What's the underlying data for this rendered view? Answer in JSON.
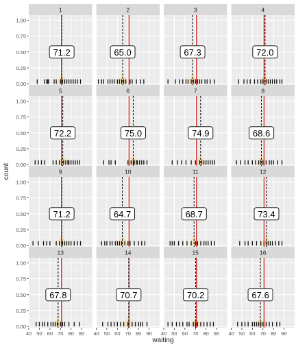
{
  "chart_data": {
    "type": "faceted-histogram",
    "xlabel": "waiting",
    "ylabel": "count",
    "xlim": [
      40,
      100
    ],
    "ylim": [
      -0.02,
      1.08
    ],
    "x_ticks": [
      40,
      50,
      60,
      70,
      80,
      90
    ],
    "y_ticks": [
      0.0,
      0.25,
      0.5,
      0.75,
      1.0
    ],
    "y_tick_labels": [
      "0.00",
      "0.25",
      "0.50",
      "0.75",
      "1.00"
    ],
    "reference_line": {
      "x": 71,
      "color": "#cc0000"
    },
    "density_color": "#f5deb3",
    "grid": true,
    "panels": [
      {
        "label": "1",
        "mean": 71.2,
        "mean_label": "71.2",
        "samples": [
          48,
          55,
          57,
          58,
          59,
          64,
          66,
          70,
          72,
          74,
          76,
          78,
          80,
          82,
          84,
          86,
          89
        ]
      },
      {
        "label": "2",
        "mean": 65.0,
        "mean_label": "65.0",
        "samples": [
          42,
          45,
          47,
          51,
          53,
          55,
          57,
          60,
          62,
          64,
          66,
          68,
          72,
          74,
          78,
          82,
          85
        ]
      },
      {
        "label": "3",
        "mean": 67.3,
        "mean_label": "67.3",
        "samples": [
          44,
          51,
          55,
          58,
          61,
          63,
          66,
          68,
          70,
          72,
          74,
          76,
          79,
          81,
          84,
          88
        ]
      },
      {
        "label": "4",
        "mean": 72.0,
        "mean_label": "72.0",
        "samples": [
          47,
          52,
          55,
          58,
          62,
          65,
          68,
          70,
          73,
          75,
          77,
          79,
          81,
          83,
          86,
          88
        ]
      },
      {
        "label": "5",
        "mean": 72.2,
        "mean_label": "72.2",
        "samples": [
          46,
          49,
          52,
          55,
          63,
          66,
          69,
          71,
          73,
          75,
          77,
          78,
          80,
          82,
          84,
          86,
          88
        ]
      },
      {
        "label": "6",
        "mean": 75.0,
        "mean_label": "75.0",
        "samples": [
          47,
          52,
          54,
          58,
          70,
          73,
          75,
          76,
          78,
          79,
          81,
          83,
          85,
          88
        ]
      },
      {
        "label": "7",
        "mean": 74.9,
        "mean_label": "74.9",
        "samples": [
          48,
          53,
          57,
          61,
          66,
          70,
          74,
          76,
          78,
          80,
          82,
          84,
          86,
          88
        ]
      },
      {
        "label": "8",
        "mean": 68.6,
        "mean_label": "68.6",
        "samples": [
          45,
          49,
          53,
          56,
          60,
          63,
          66,
          68,
          70,
          73,
          76,
          78,
          80,
          84,
          88
        ]
      },
      {
        "label": "9",
        "mean": 71.2,
        "mean_label": "71.2",
        "samples": [
          44,
          49,
          54,
          57,
          60,
          66,
          69,
          72,
          74,
          76,
          78,
          80,
          83,
          86,
          89
        ]
      },
      {
        "label": "10",
        "mean": 64.7,
        "mean_label": "64.7",
        "samples": [
          45,
          48,
          50,
          53,
          55,
          58,
          60,
          62,
          64,
          67,
          70,
          72,
          76,
          80,
          83,
          86
        ]
      },
      {
        "label": "11",
        "mean": 68.7,
        "mean_label": "68.7",
        "samples": [
          46,
          48,
          50,
          54,
          58,
          62,
          66,
          70,
          72,
          75,
          78,
          80,
          82,
          85,
          88
        ]
      },
      {
        "label": "12",
        "mean": 73.4,
        "mean_label": "73.4",
        "samples": [
          48,
          53,
          56,
          60,
          64,
          68,
          71,
          73,
          75,
          77,
          79,
          82,
          85,
          88
        ]
      },
      {
        "label": "13",
        "mean": 67.8,
        "mean_label": "67.8",
        "samples": [
          47,
          50,
          53,
          55,
          58,
          61,
          63,
          65,
          67,
          70,
          72,
          74,
          78,
          83,
          88
        ]
      },
      {
        "label": "14",
        "mean": 70.7,
        "mean_label": "70.7",
        "samples": [
          46,
          51,
          54,
          57,
          60,
          63,
          66,
          70,
          74,
          77,
          80,
          82,
          84,
          88
        ]
      },
      {
        "label": "15",
        "mean": 70.2,
        "mean_label": "70.2",
        "samples": [
          44,
          48,
          52,
          55,
          58,
          62,
          64,
          68,
          70,
          72,
          75,
          78,
          81,
          84,
          87
        ]
      },
      {
        "label": "16",
        "mean": 67.6,
        "mean_label": "67.6",
        "samples": [
          46,
          50,
          53,
          56,
          60,
          62,
          64,
          66,
          68,
          70,
          73,
          76,
          79,
          83,
          86
        ]
      }
    ]
  }
}
